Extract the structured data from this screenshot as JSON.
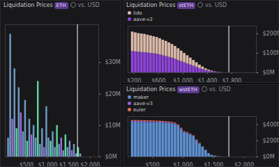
{
  "chart_data": [
    {
      "type": "histogram",
      "title": "Liquidation Prices",
      "subtitle": "ETH",
      "annotation": "vs. USD",
      "bins": [
        50,
        100,
        150,
        200,
        250,
        300,
        350,
        400,
        450,
        500,
        550,
        600,
        650,
        700,
        750,
        800,
        850,
        900,
        950,
        1000,
        1050,
        1100,
        1150,
        1200,
        1250,
        1300,
        1350,
        1400,
        1450,
        1500,
        1550,
        1600,
        1650,
        1700,
        1750,
        1800
      ],
      "values": [
        6,
        39,
        12,
        28,
        9,
        22,
        14,
        8,
        18,
        5,
        12,
        7,
        10,
        6,
        24,
        4,
        9,
        3,
        16,
        6,
        5,
        8,
        3,
        10,
        4,
        6,
        2,
        7,
        3,
        5,
        2,
        4,
        1,
        3,
        1
      ],
      "colors": [
        "#6f9bc4",
        "#6f9bc4",
        "#9b6dd6",
        "#6f9bc4",
        "#5fd39a",
        "#6f9bc4",
        "#9b6dd6",
        "#6f9bc4",
        "#6f9bc4",
        "#5fd39a",
        "#6f9bc4",
        "#9b6dd6",
        "#6f9bc4",
        "#6f9bc4",
        "#5fd39a",
        "#6f9bc4",
        "#6f9bc4",
        "#9b6dd6",
        "#6f9bc4",
        "#6f9bc4",
        "#5fd39a",
        "#6f9bc4",
        "#6f9bc4",
        "#5fd39a",
        "#6f9bc4",
        "#9b6dd6",
        "#6f9bc4",
        "#5fd39a",
        "#6f9bc4",
        "#6f9bc4",
        "#9b6dd6",
        "#6f9bc4",
        "#6f9bc4",
        "#5fd39a",
        "#6f9bc4"
      ],
      "xlim": [
        0,
        2200
      ],
      "xticks": [
        {
          "value": 500,
          "label": "$500"
        },
        {
          "value": 1000,
          "label": "$1,000"
        },
        {
          "value": 1500,
          "label": "$1,500"
        },
        {
          "value": 2000,
          "label": "$2,000"
        }
      ],
      "ylim": [
        0,
        42
      ],
      "yticks": [
        {
          "value": 0,
          "label": "$0M"
        },
        {
          "value": 10,
          "label": "$10M"
        },
        {
          "value": 20,
          "label": "$20M"
        },
        {
          "value": 30,
          "label": "$30M"
        }
      ],
      "current_price": 1700,
      "grid": false,
      "stacked": false
    },
    {
      "type": "histogram",
      "title": "Liquidation Prices",
      "subtitle": "stETH",
      "annotation": "vs. USD",
      "bins": [
        150,
        200,
        250,
        300,
        350,
        400,
        450,
        500,
        550,
        600,
        650,
        700,
        750,
        800,
        850,
        900,
        950,
        1000,
        1050,
        1100,
        1150,
        1200,
        1250,
        1300,
        1350,
        1400,
        1450,
        1500,
        1550,
        1600,
        1650
      ],
      "series": [
        {
          "name": "aave-v2",
          "color": "#8e44d6",
          "values": [
            110,
            108,
            106,
            105,
            104,
            102,
            100,
            98,
            96,
            92,
            88,
            84,
            80,
            76,
            70,
            64,
            58,
            52,
            46,
            40,
            34,
            28,
            22,
            17,
            12,
            8,
            5,
            3,
            2,
            1
          ]
        },
        {
          "name": "lido",
          "color": "#d9b8a8",
          "values": [
            100,
            98,
            96,
            95,
            94,
            92,
            90,
            88,
            86,
            84,
            80,
            78,
            74,
            70,
            66,
            60,
            54,
            48,
            42,
            36,
            30,
            24,
            18,
            13,
            9,
            6,
            4,
            2,
            1,
            0.5
          ]
        }
      ],
      "legend_order": [
        "lido",
        "aave-v2"
      ],
      "xlim": [
        100,
        2200
      ],
      "xticks": [
        {
          "value": 200,
          "label": "$200"
        },
        {
          "value": 600,
          "label": "$600"
        },
        {
          "value": 1000,
          "label": "$1,000"
        },
        {
          "value": 1400,
          "label": "$1,400"
        },
        {
          "value": 1800,
          "label": "$1,800"
        }
      ],
      "ylim": [
        0,
        240
      ],
      "yticks": [
        {
          "value": 0,
          "label": "$0M"
        },
        {
          "value": 100,
          "label": "$100M"
        },
        {
          "value": 200,
          "label": "$200M"
        }
      ],
      "current_price": 1750,
      "grid": false,
      "stacked": true,
      "legend": "top-left"
    },
    {
      "type": "histogram",
      "title": "Liquidation Prices",
      "subtitle": "wstETH",
      "annotation": "vs. USD",
      "bins": [
        150,
        200,
        250,
        300,
        350,
        400,
        450,
        500,
        550,
        600,
        650,
        700,
        750,
        800,
        850,
        900,
        950,
        1000,
        1050,
        1100,
        1150,
        1200,
        1250,
        1300,
        1350,
        1400,
        1450,
        1500,
        1550,
        1600,
        1650
      ],
      "series": [
        {
          "name": "maker",
          "color": "#5c8fcf",
          "values": [
            430,
            430,
            430,
            428,
            428,
            426,
            426,
            425,
            424,
            422,
            420,
            418,
            416,
            410,
            400,
            380,
            340,
            300,
            290,
            270,
            250,
            200,
            160,
            120,
            80,
            40,
            20,
            10,
            5,
            2
          ]
        },
        {
          "name": "aave-v3",
          "color": "#9b5de5",
          "values": [
            12,
            12,
            12,
            12,
            12,
            12,
            12,
            11,
            11,
            11,
            11,
            10,
            10,
            10,
            10,
            9,
            9,
            8,
            8,
            7,
            7,
            6,
            5,
            4,
            3,
            2,
            1,
            1,
            0.5,
            0.2
          ]
        },
        {
          "name": "euler",
          "color": "#e8734a",
          "values": [
            10,
            10,
            10,
            10,
            10,
            10,
            10,
            10,
            10,
            10,
            9,
            9,
            9,
            9,
            9,
            8,
            8,
            7,
            7,
            6,
            6,
            5,
            4,
            3,
            2,
            2,
            1,
            1,
            0.5,
            0.2
          ]
        }
      ],
      "legend_order": [
        "maker",
        "aave-v3",
        "euler"
      ],
      "xlim": [
        100,
        2200
      ],
      "xticks": [
        {
          "value": 500,
          "label": "$500"
        },
        {
          "value": 1000,
          "label": "$1,000"
        },
        {
          "value": 1500,
          "label": "$1,500"
        },
        {
          "value": 2000,
          "label": "$2,000"
        }
      ],
      "ylim": [
        0,
        500
      ],
      "yticks": [
        {
          "value": 0,
          "label": "$0M"
        },
        {
          "value": 200,
          "label": "$200M"
        },
        {
          "value": 400,
          "label": "$400M"
        }
      ],
      "current_price": 1750,
      "grid": false,
      "stacked": true,
      "legend": "top-left"
    }
  ]
}
